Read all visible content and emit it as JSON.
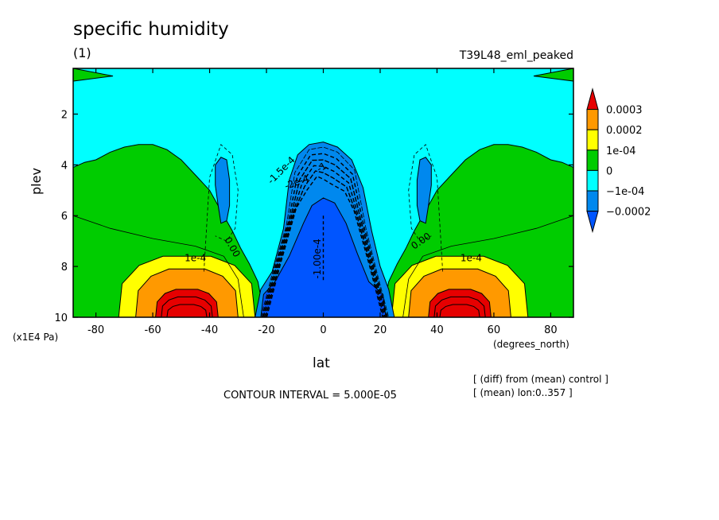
{
  "chart_data": {
    "type": "heatmap",
    "title": "specific humidity",
    "subtitle": "(1)",
    "experiment": "T39L48_eml_peaked",
    "xlabel": "lat",
    "xunit": "(degrees_north)",
    "ylabel": "plev",
    "yunit": "(x1E4 Pa)",
    "xlim": [
      -88,
      88
    ],
    "ylim": [
      10,
      0.2
    ],
    "x_ticks": [
      -80,
      -60,
      -40,
      -20,
      0,
      20,
      40,
      60,
      80
    ],
    "y_ticks": [
      2,
      4,
      6,
      8,
      10
    ],
    "contour_interval_text": "CONTOUR INTERVAL = 5.000E-05",
    "notes": [
      "[ (diff) from (mean) control ]",
      "[ (mean) lon:0..357 ]"
    ],
    "legend": {
      "placement": "right",
      "labels": [
        "0.0003",
        "0.0002",
        "1e-04",
        "0",
        "−1e-04",
        "−0.0002"
      ],
      "colors": [
        "#e60000",
        "#ff9900",
        "#ffff00",
        "#00cc00",
        "#00ffff",
        "#0088ee",
        "#0055ff"
      ]
    },
    "contour_labels": [
      {
        "text": "0.00",
        "lat": -33,
        "plev": 7.3,
        "rot": 60
      },
      {
        "text": "0.00",
        "lat": 35,
        "plev": 7.1,
        "rot": -35
      },
      {
        "text": "1e-4",
        "lat": -45,
        "plev": 7.8,
        "rot": 0
      },
      {
        "text": "1e-4",
        "lat": 52,
        "plev": 7.8,
        "rot": 0
      },
      {
        "text": "-1.00e-4",
        "lat": -1,
        "plev": 7.7,
        "rot": -90
      },
      {
        "text": "-1.5e-4",
        "lat": -14,
        "plev": 4.3,
        "rot": -45
      },
      {
        "text": "-2e-4",
        "lat": -9,
        "plev": 4.8,
        "rot": -20
      },
      {
        "text": "-1",
        "lat": 0,
        "plev": 4.2,
        "rot": -30
      }
    ],
    "regions": [
      {
        "name": "background",
        "level": "-1e-04..0",
        "color": "#00ffff"
      },
      {
        "name": "southern-subtropics",
        "level": "0..1e-04",
        "color": "#00cc00"
      },
      {
        "name": "northern-subtropics",
        "level": "0..1e-04",
        "color": "#00cc00"
      },
      {
        "name": "tropical-minimum",
        "level": "< -0.0002",
        "color": "#0055ff"
      },
      {
        "name": "southern-midlat-maximum",
        "level": "> 0.0003",
        "color": "#e60000"
      },
      {
        "name": "northern-midlat-maximum",
        "level": "> 0.0003",
        "color": "#e60000"
      }
    ]
  }
}
